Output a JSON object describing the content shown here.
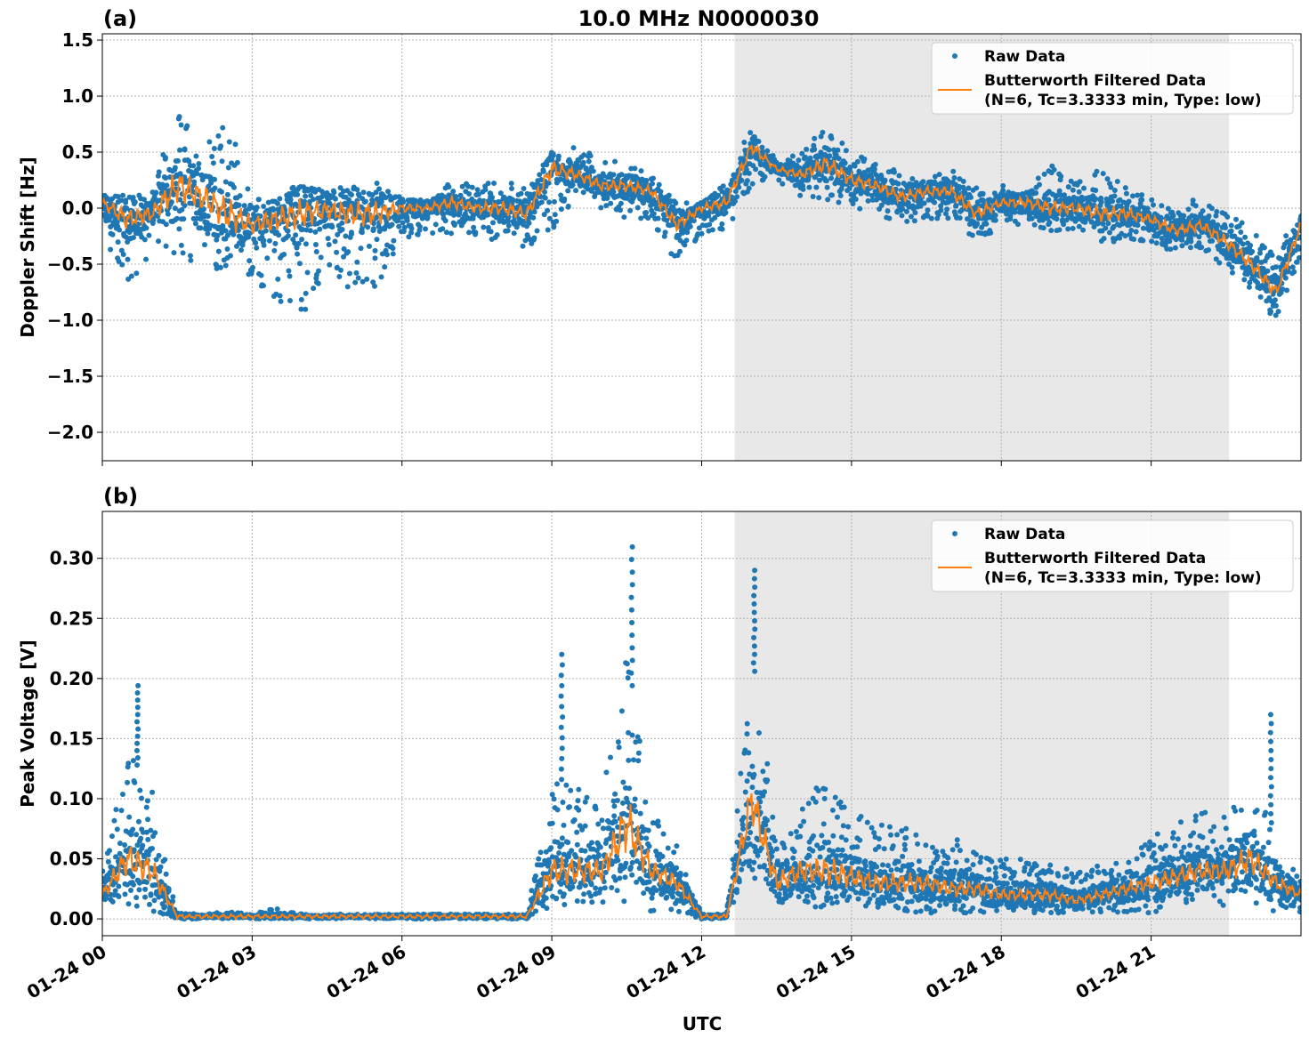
{
  "chart_data": [
    {
      "type": "scatter+line",
      "panel_label": "(a)",
      "title": "10.0 MHz N0000030",
      "xlabel": "",
      "ylabel": "Doppler Shift [Hz]",
      "xlim_hours_utc": [
        0,
        24
      ],
      "ylim": [
        -2.254,
        1.556
      ],
      "x_ticks": [
        "01-24 00",
        "01-24 03",
        "01-24 06",
        "01-24 09",
        "01-24 12",
        "01-24 15",
        "01-24 18",
        "01-24 21"
      ],
      "x_tick_hours": [
        0,
        3,
        6,
        9,
        12,
        15,
        18,
        21
      ],
      "y_ticks": [
        1.5,
        1.0,
        0.5,
        0.0,
        -0.5,
        -1.0,
        -1.5,
        -2.0
      ],
      "y_tick_labels": [
        "1.5",
        "1.0",
        "0.5",
        "0.0",
        "−0.5",
        "−1.0",
        "−1.5",
        "−2.0"
      ],
      "grid": true,
      "shaded_span_hours": [
        12.66,
        22.56
      ],
      "legend": {
        "placement": "top-right",
        "entries": [
          "Raw Data",
          "Butterworth Filtered Data",
          "(N=6, Tc=3.3333 min, Type: low)"
        ]
      },
      "x_hours": [
        0,
        0.5,
        1,
        1.5,
        2,
        2.5,
        3,
        3.5,
        4,
        4.5,
        5,
        5.5,
        6,
        6.5,
        7,
        7.5,
        8,
        8.5,
        9,
        9.5,
        10,
        10.5,
        11,
        11.5,
        12,
        12.5,
        13,
        13.5,
        14,
        14.5,
        15,
        15.5,
        16,
        16.5,
        17,
        17.5,
        18,
        18.5,
        19,
        19.5,
        20,
        20.5,
        21,
        21.5,
        22,
        22.5,
        23,
        23.5,
        24
      ],
      "series": [
        {
          "name": "Butterworth Filtered Data",
          "style": "line",
          "values": [
            0.05,
            -0.1,
            -0.05,
            0.2,
            0.1,
            -0.05,
            -0.15,
            -0.1,
            -0.05,
            -0.02,
            -0.05,
            -0.05,
            0.0,
            0.0,
            0.05,
            0.0,
            0.0,
            -0.05,
            0.35,
            0.3,
            0.2,
            0.2,
            0.15,
            -0.15,
            0.0,
            0.05,
            0.55,
            0.35,
            0.3,
            0.4,
            0.25,
            0.2,
            0.1,
            0.15,
            0.15,
            -0.05,
            0.05,
            0.05,
            0.0,
            0.0,
            -0.05,
            -0.05,
            -0.1,
            -0.2,
            -0.15,
            -0.3,
            -0.5,
            -0.75,
            -0.15
          ]
        },
        {
          "name": "Raw Data",
          "style": "points",
          "envelope_low": [
            -0.2,
            -0.75,
            -0.4,
            -0.5,
            -0.5,
            -0.6,
            -0.6,
            -0.9,
            -1.0,
            -0.5,
            -0.8,
            -0.7,
            -0.3,
            -0.25,
            -0.25,
            -0.25,
            -0.3,
            -0.35,
            -0.2,
            0.1,
            0.0,
            -0.1,
            -0.1,
            -0.5,
            -0.25,
            -0.2,
            0.2,
            0.25,
            0.1,
            0.05,
            0.0,
            -0.05,
            -0.15,
            -0.1,
            -0.1,
            -0.35,
            -0.15,
            -0.2,
            -0.2,
            -0.2,
            -0.3,
            -0.3,
            -0.3,
            -0.4,
            -0.35,
            -0.55,
            -0.75,
            -1.0,
            -0.4
          ],
          "envelope_high": [
            0.15,
            0.15,
            0.2,
            0.9,
            0.6,
            0.8,
            0.1,
            0.1,
            0.2,
            0.2,
            0.25,
            0.25,
            0.1,
            0.05,
            0.25,
            0.2,
            0.25,
            0.2,
            0.5,
            0.55,
            0.45,
            0.4,
            0.3,
            0.05,
            0.05,
            0.25,
            0.75,
            0.45,
            0.5,
            0.75,
            0.5,
            0.4,
            0.35,
            0.3,
            0.35,
            0.2,
            0.2,
            0.25,
            0.4,
            0.25,
            0.35,
            0.2,
            0.1,
            0.05,
            0.1,
            0.0,
            -0.2,
            -0.4,
            0.0
          ]
        }
      ],
      "colors": {
        "raw": "#1f77b4",
        "filtered": "#ff7f0e",
        "shade": "#e8e8e8"
      }
    },
    {
      "type": "scatter+line",
      "panel_label": "(b)",
      "xlabel": "UTC",
      "ylabel": "Peak Voltage [V]",
      "xlim_hours_utc": [
        0,
        24
      ],
      "ylim": [
        -0.014,
        0.339
      ],
      "x_ticks": [
        "01-24 00",
        "01-24 03",
        "01-24 06",
        "01-24 09",
        "01-24 12",
        "01-24 15",
        "01-24 18",
        "01-24 21"
      ],
      "x_tick_hours": [
        0,
        3,
        6,
        9,
        12,
        15,
        18,
        21
      ],
      "y_ticks": [
        0.0,
        0.05,
        0.1,
        0.15,
        0.2,
        0.25,
        0.3
      ],
      "y_tick_labels": [
        "0.00",
        "0.05",
        "0.10",
        "0.15",
        "0.20",
        "0.25",
        "0.30"
      ],
      "grid": true,
      "shaded_span_hours": [
        12.66,
        22.56
      ],
      "legend": {
        "placement": "top-right",
        "entries": [
          "Raw Data",
          "Butterworth Filtered Data",
          "(N=6, Tc=3.3333 min, Type: low)"
        ]
      },
      "x_hours": [
        0,
        0.5,
        1,
        1.5,
        2,
        2.5,
        3,
        3.5,
        4,
        4.5,
        5,
        5.5,
        6,
        6.5,
        7,
        7.5,
        8,
        8.5,
        9,
        9.5,
        10,
        10.5,
        11,
        11.5,
        12,
        12.5,
        13,
        13.5,
        14,
        14.5,
        15,
        15.5,
        16,
        16.5,
        17,
        17.5,
        18,
        18.5,
        19,
        19.5,
        20,
        20.5,
        21,
        21.5,
        22,
        22.5,
        23,
        23.5,
        24
      ],
      "series": [
        {
          "name": "Butterworth Filtered Data",
          "style": "line",
          "values": [
            0.02,
            0.05,
            0.04,
            0.002,
            0.002,
            0.002,
            0.002,
            0.002,
            0.002,
            0.002,
            0.002,
            0.002,
            0.002,
            0.002,
            0.002,
            0.002,
            0.002,
            0.002,
            0.04,
            0.04,
            0.04,
            0.08,
            0.04,
            0.03,
            0.002,
            0.002,
            0.1,
            0.03,
            0.04,
            0.04,
            0.035,
            0.03,
            0.03,
            0.03,
            0.025,
            0.025,
            0.02,
            0.02,
            0.02,
            0.015,
            0.02,
            0.025,
            0.03,
            0.035,
            0.04,
            0.04,
            0.05,
            0.03,
            0.02
          ]
        },
        {
          "name": "Raw Data",
          "style": "points",
          "envelope_low": [
            0.005,
            0.01,
            0.005,
            0,
            0,
            0,
            0,
            0,
            0,
            0,
            0,
            0,
            0,
            0,
            0,
            0,
            0,
            0,
            0.01,
            0.01,
            0.01,
            0.01,
            0.005,
            0.005,
            0,
            0,
            0.03,
            0.005,
            0.01,
            0.01,
            0.01,
            0.01,
            0.005,
            0.005,
            0.005,
            0.005,
            0.005,
            0.005,
            0.005,
            0.005,
            0.005,
            0.005,
            0.005,
            0.01,
            0.01,
            0.01,
            0.01,
            0.005,
            0.005
          ],
          "envelope_high": [
            0.04,
            0.14,
            0.11,
            0.005,
            0.004,
            0.006,
            0.004,
            0.01,
            0.004,
            0.004,
            0.004,
            0.004,
            0.004,
            0.004,
            0.004,
            0.004,
            0.004,
            0.004,
            0.12,
            0.11,
            0.1,
            0.22,
            0.09,
            0.07,
            0.004,
            0.004,
            0.22,
            0.08,
            0.1,
            0.12,
            0.09,
            0.08,
            0.08,
            0.07,
            0.07,
            0.06,
            0.05,
            0.05,
            0.045,
            0.04,
            0.045,
            0.05,
            0.07,
            0.08,
            0.09,
            0.09,
            0.12,
            0.07,
            0.035
          ],
          "peak_points": [
            [
              0.7,
              0.2
            ],
            [
              9.2,
              0.22
            ],
            [
              10.6,
              0.32
            ],
            [
              13.05,
              0.29
            ],
            [
              23.4,
              0.17
            ]
          ]
        }
      ],
      "colors": {
        "raw": "#1f77b4",
        "filtered": "#ff7f0e",
        "shade": "#e8e8e8"
      }
    }
  ]
}
